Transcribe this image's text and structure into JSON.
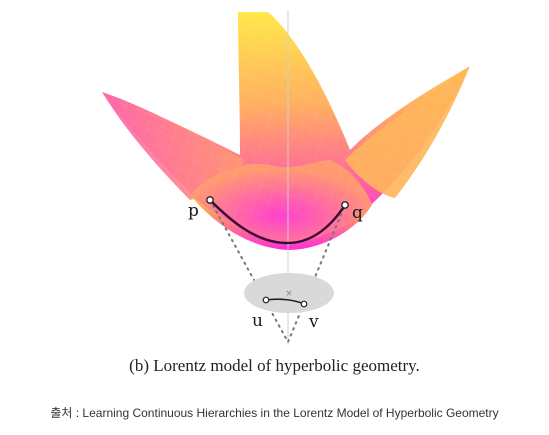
{
  "figure": {
    "labels": {
      "p": "p",
      "q": "q",
      "u": "u",
      "v": "v"
    },
    "caption": "(b) Lorentz model of hyperbolic geometry.",
    "source": "출처 : Learning Continuous Hierarchies in the Lorentz Model of Hyperbolic Geometry",
    "colors": {
      "surface_top": "#ffe84a",
      "surface_mid": "#ff7a8a",
      "surface_bottom": "#ff2fd6",
      "geodesic": "#3a0a3a",
      "disk": "#d9d9d9",
      "dots": "#777777"
    }
  }
}
